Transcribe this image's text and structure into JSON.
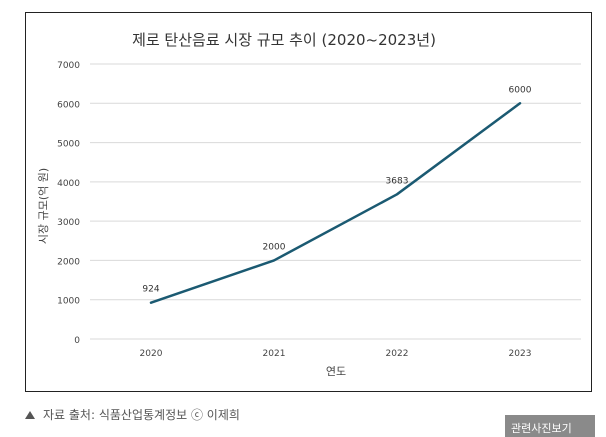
{
  "chart_data": {
    "type": "line",
    "title": "제로 탄산음료 시장 규모 추이 (2020~2023년)",
    "xlabel": "연도",
    "ylabel": "시장 규모(억 원)",
    "categories": [
      "2020",
      "2021",
      "2022",
      "2023"
    ],
    "values": [
      924,
      2000,
      3683,
      6000
    ],
    "data_labels": [
      "924",
      "2000",
      "3683",
      "6000"
    ],
    "ylim": [
      0,
      7000
    ],
    "yticks": [
      0,
      1000,
      2000,
      3000,
      4000,
      5000,
      6000,
      7000
    ],
    "grid": true,
    "legend": "none",
    "line_color": "#1b5a72"
  },
  "caption": {
    "text": "자료 출처: 식품산업통계정보 ⓒ 이제희",
    "icon": "triangle-up-icon"
  },
  "related_button": {
    "label": "관련사진보기"
  }
}
